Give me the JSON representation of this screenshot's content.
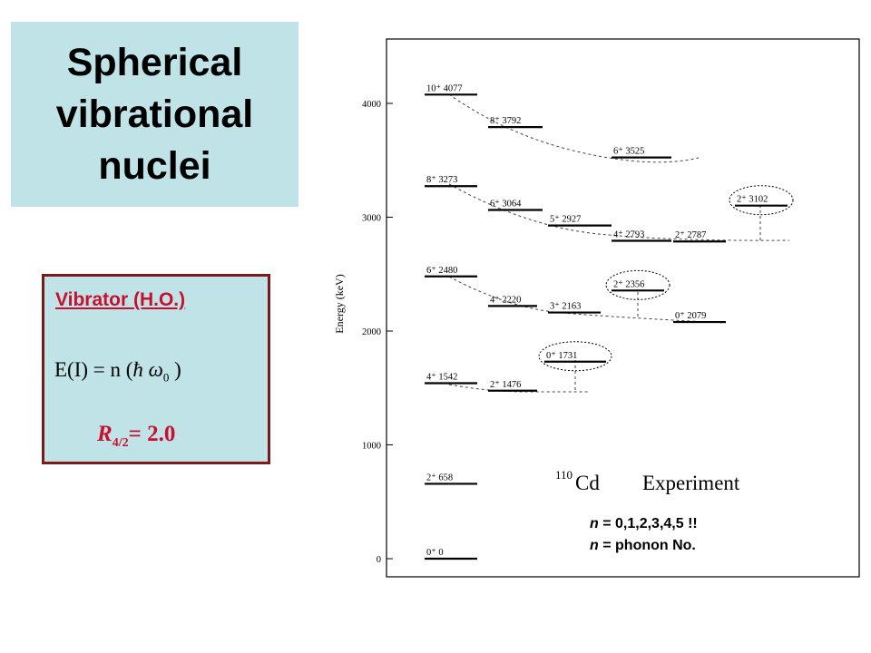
{
  "slide": {
    "title_lines": [
      "Spherical",
      "vibrational",
      "nuclei"
    ]
  },
  "vibrator": {
    "heading": "Vibrator (H.O.)",
    "formula_lhs": "E(I) = n (",
    "hbar": "ħ",
    "omega": "ω",
    "omega_sub": "0",
    "formula_close": ")",
    "ratio_symbol": "R",
    "ratio_sub": "4/2",
    "ratio_value": "= 2.0"
  },
  "notes": {
    "line1_var": "n",
    "line1_text": " = 0,1,2,3,4,5 !!",
    "line2_var": "n",
    "line2_text": " = phonon No."
  },
  "colors": {
    "title_bg": "#bfe3e6",
    "box_border": "#7a1a1a",
    "accent_red": "#c8102e"
  },
  "chart_data": {
    "type": "level_scheme",
    "nucleus": {
      "mass_number": "110",
      "element": "Cd",
      "caption": "Experiment"
    },
    "ylabel": "Energy (keV)",
    "ylim": [
      0,
      4000
    ],
    "yticks": [
      0,
      1000,
      2000,
      3000,
      4000
    ],
    "levels": [
      {
        "spin": "0+",
        "energy": 0,
        "label": "0⁺   0"
      },
      {
        "spin": "2+",
        "energy": 658,
        "label": "2⁺   658"
      },
      {
        "spin": "4+",
        "energy": 1542,
        "label": "4⁺  1542"
      },
      {
        "spin": "2+",
        "energy": 1476,
        "label": "2⁺   1476"
      },
      {
        "spin": "0+",
        "energy": 1731,
        "label": "0⁺   1731",
        "circled": true
      },
      {
        "spin": "6+",
        "energy": 2480,
        "label": "6⁺  2480"
      },
      {
        "spin": "4+",
        "energy": 2220,
        "label": "4⁺  2220"
      },
      {
        "spin": "3+",
        "energy": 2163,
        "label": "3⁺   2163"
      },
      {
        "spin": "2+",
        "energy": 2356,
        "label": "2⁺   2356",
        "circled": true
      },
      {
        "spin": "0+",
        "energy": 2079,
        "label": "0⁺   2079"
      },
      {
        "spin": "8+",
        "energy": 3273,
        "label": "8⁺   3273"
      },
      {
        "spin": "6+",
        "energy": 3064,
        "label": "6⁺   3064"
      },
      {
        "spin": "5+",
        "energy": 2927,
        "label": "5⁺   2927"
      },
      {
        "spin": "4+",
        "energy": 2793,
        "label": "4⁺   2793"
      },
      {
        "spin": "2+",
        "energy": 2787,
        "label": "2⁺   2787"
      },
      {
        "spin": "2+",
        "energy": 3102,
        "label": "2⁺   3102",
        "circled": true
      },
      {
        "spin": "10+",
        "energy": 4077,
        "label": "10⁺ 4077"
      },
      {
        "spin": "8+",
        "energy": 3792,
        "label": "8⁺   3792"
      },
      {
        "spin": "6+",
        "energy": 3525,
        "label": "6⁺   3525"
      }
    ]
  }
}
